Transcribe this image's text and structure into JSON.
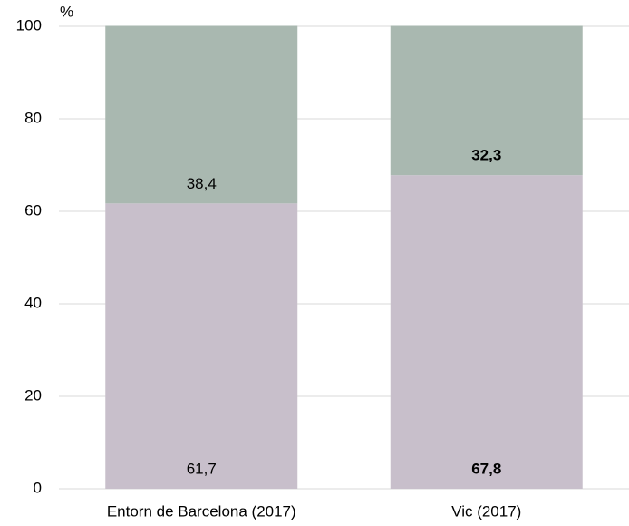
{
  "chart_data": {
    "type": "stacked_bar",
    "ylabel": "%",
    "categories": [
      "Entorn de Barcelona (2017)",
      "Vic (2017)"
    ],
    "series": [
      {
        "color": "#c8bfcb",
        "values": [
          61.7,
          67.8
        ],
        "value_labels": [
          "61,7",
          "67,8"
        ]
      },
      {
        "color": "#a9b8b0",
        "values": [
          38.4,
          32.3
        ],
        "value_labels": [
          "38,4",
          "32,3"
        ]
      }
    ],
    "ylim": [
      0,
      100
    ],
    "yticks": [
      0,
      20,
      40,
      60,
      80,
      100
    ],
    "grid": true
  }
}
